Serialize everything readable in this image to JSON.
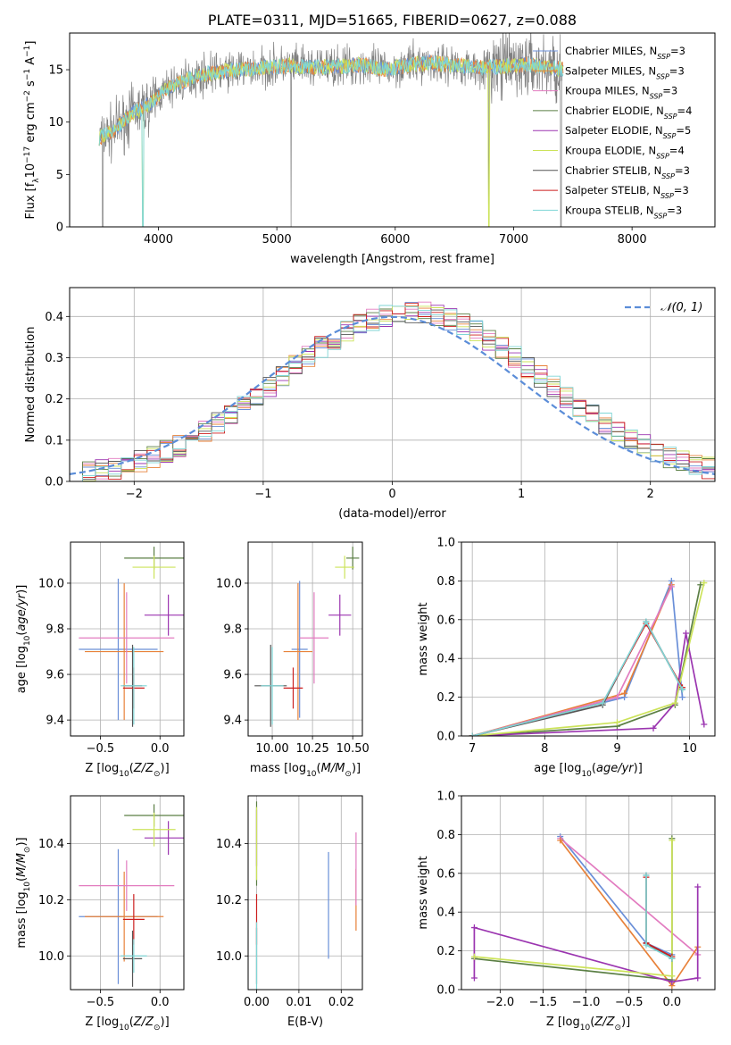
{
  "colors": {
    "chabrier_miles": "#6a8fd8",
    "salpeter_miles": "#e8823a",
    "kroupa_miles": "#e27cc0",
    "chabrier_elodie": "#5b7f45",
    "salpeter_elodie": "#9b35b0",
    "kroupa_elodie": "#cce35a",
    "chabrier_stelib": "#555555",
    "salpeter_stelib": "#cc1f1f",
    "kroupa_stelib": "#7fd6d6",
    "normal": "#5b8dd8"
  },
  "chart_data": [
    {
      "id": "spectrum",
      "type": "line",
      "title": "PLATE=0311, MJD=51665, FIBERID=0627, z=0.088",
      "xlabel": "wavelength [Angstrom, rest frame]",
      "ylabel": "Flux [f_λ 10^-17 erg cm^-2 s^-1 A^-1]",
      "xlim": [
        3250,
        8700
      ],
      "ylim": [
        0,
        18.5
      ],
      "xticks": [
        "4000",
        "5000",
        "6000",
        "7000",
        "8000"
      ],
      "yticks": [
        "0",
        "5",
        "10",
        "15"
      ],
      "continuum": {
        "x": [
          3500,
          3600,
          3700,
          3800,
          3900,
          4000,
          4100,
          4200,
          4300,
          4400,
          4500,
          4700,
          4900,
          5100,
          5300,
          5500,
          5700,
          5900,
          6100,
          6300,
          6500,
          6700,
          6900,
          7100,
          7300,
          7500,
          7700,
          7900,
          8100,
          8300,
          8500
        ],
        "y": [
          8.5,
          9.0,
          10.0,
          11.0,
          11.5,
          12.5,
          13.3,
          13.8,
          14.3,
          14.6,
          14.8,
          15.0,
          15.2,
          15.4,
          15.2,
          15.3,
          15.5,
          15.0,
          15.4,
          15.7,
          15.4,
          15.2,
          15.3,
          15.5,
          15.2,
          14.9,
          14.8,
          14.6,
          14.4,
          14.3,
          14.2
        ]
      },
      "legend": [
        {
          "name": "Chabrier MILES",
          "nssp": "3",
          "color": "chabrier_miles"
        },
        {
          "name": "Salpeter MILES",
          "nssp": "3",
          "color": "salpeter_miles"
        },
        {
          "name": "Kroupa MILES",
          "nssp": "3",
          "color": "kroupa_miles"
        },
        {
          "name": "Chabrier ELODIE",
          "nssp": "4",
          "color": "chabrier_elodie"
        },
        {
          "name": "Salpeter ELODIE",
          "nssp": "5",
          "color": "salpeter_elodie"
        },
        {
          "name": "Kroupa ELODIE",
          "nssp": "4",
          "color": "kroupa_elodie"
        },
        {
          "name": "Chabrier STELIB",
          "nssp": "3",
          "color": "chabrier_stelib"
        },
        {
          "name": "Salpeter STELIB",
          "nssp": "3",
          "color": "salpeter_stelib"
        },
        {
          "name": "Kroupa STELIB",
          "nssp": "3",
          "color": "kroupa_stelib"
        }
      ],
      "legend_placement": "right"
    },
    {
      "id": "residuals",
      "type": "step",
      "xlabel": "(data-model)/error",
      "ylabel": "Normed distribution",
      "xlim": [
        -2.5,
        2.5
      ],
      "ylim": [
        0,
        0.47
      ],
      "xticks": [
        "−2",
        "−1",
        "0",
        "1",
        "2"
      ],
      "yticks": [
        "0.0",
        "0.1",
        "0.2",
        "0.3",
        "0.4"
      ],
      "grid": true,
      "bin_width": 0.1,
      "normal_curve": {
        "label": "𝒩(0, 1)",
        "mean": 0,
        "sigma": 1
      },
      "legend_placement": "top-right"
    },
    {
      "id": "age_vs_Z",
      "type": "errorbar",
      "xlabel": "Z [log10(Z/Z⊙)]",
      "ylabel": "age [log10(age/yr)]",
      "xlim": [
        -0.75,
        0.2
      ],
      "ylim": [
        9.33,
        10.18
      ],
      "xticks": [
        "−0.5",
        "0.0"
      ],
      "yticks": [
        "9.4",
        "9.6",
        "9.8",
        "10.0"
      ],
      "grid": true,
      "points": [
        {
          "c": "chabrier_miles",
          "x": -0.35,
          "xerr": 0.33,
          "y": 9.71,
          "yerr": 0.31
        },
        {
          "c": "salpeter_miles",
          "x": -0.3,
          "xerr": 0.33,
          "y": 9.7,
          "yerr": 0.3
        },
        {
          "c": "kroupa_miles",
          "x": -0.28,
          "xerr": 0.4,
          "y": 9.76,
          "yerr": 0.2
        },
        {
          "c": "chabrier_elodie",
          "x": -0.05,
          "xerr": 0.25,
          "y": 10.11,
          "yerr": 0.05
        },
        {
          "c": "salpeter_elodie",
          "x": 0.07,
          "xerr": 0.2,
          "y": 9.86,
          "yerr": 0.09
        },
        {
          "c": "kroupa_elodie",
          "x": -0.05,
          "xerr": 0.18,
          "y": 10.07,
          "yerr": 0.05
        },
        {
          "c": "chabrier_stelib",
          "x": -0.23,
          "xerr": 0.08,
          "y": 9.55,
          "yerr": 0.18
        },
        {
          "c": "salpeter_stelib",
          "x": -0.22,
          "xerr": 0.09,
          "y": 9.54,
          "yerr": 0.09
        },
        {
          "c": "kroupa_stelib",
          "x": -0.22,
          "xerr": 0.11,
          "y": 9.55,
          "yerr": 0.17
        }
      ]
    },
    {
      "id": "age_vs_mass",
      "type": "errorbar",
      "xlabel": "mass [log10(M/M⊙)]",
      "ylabel": "",
      "xlim": [
        9.85,
        10.56
      ],
      "ylim": [
        9.33,
        10.18
      ],
      "xticks": [
        "10.00",
        "10.25",
        "10.50"
      ],
      "yticks": [
        "9.4",
        "9.6",
        "9.8",
        "10.0"
      ],
      "grid": true,
      "points": [
        {
          "c": "chabrier_miles",
          "x": 10.17,
          "xerr": 0.05,
          "y": 9.71,
          "yerr": 0.3
        },
        {
          "c": "salpeter_miles",
          "x": 10.16,
          "xerr": 0.09,
          "y": 9.7,
          "yerr": 0.3
        },
        {
          "c": "kroupa_miles",
          "x": 10.26,
          "xerr": 0.09,
          "y": 9.76,
          "yerr": 0.2
        },
        {
          "c": "chabrier_elodie",
          "x": 10.5,
          "xerr": 0.04,
          "y": 10.11,
          "yerr": 0.05
        },
        {
          "c": "salpeter_elodie",
          "x": 10.42,
          "xerr": 0.07,
          "y": 9.86,
          "yerr": 0.09
        },
        {
          "c": "kroupa_elodie",
          "x": 10.45,
          "xerr": 0.06,
          "y": 10.07,
          "yerr": 0.05
        },
        {
          "c": "chabrier_stelib",
          "x": 9.99,
          "xerr": 0.1,
          "y": 9.55,
          "yerr": 0.18
        },
        {
          "c": "salpeter_stelib",
          "x": 10.13,
          "xerr": 0.06,
          "y": 9.54,
          "yerr": 0.09
        },
        {
          "c": "kroupa_stelib",
          "x": 10.0,
          "xerr": 0.07,
          "y": 9.55,
          "yerr": 0.17
        }
      ]
    },
    {
      "id": "weight_vs_age",
      "type": "line",
      "xlabel": "age [log10(age/yr)]",
      "ylabel": "mass weight",
      "xlim": [
        6.85,
        10.35
      ],
      "ylim": [
        0,
        1.0
      ],
      "xticks": [
        "7",
        "8",
        "9",
        "10"
      ],
      "yticks": [
        "0.0",
        "0.2",
        "0.4",
        "0.6",
        "0.8",
        "1.0"
      ],
      "grid": true,
      "series": [
        {
          "c": "chabrier_miles",
          "x": [
            7.0,
            9.1,
            9.75,
            9.9
          ],
          "y": [
            0.0,
            0.2,
            0.8,
            0.2
          ]
        },
        {
          "c": "salpeter_miles",
          "x": [
            7.0,
            9.1,
            9.75
          ],
          "y": [
            0.0,
            0.22,
            0.78
          ]
        },
        {
          "c": "kroupa_miles",
          "x": [
            7.0,
            9.0,
            9.75
          ],
          "y": [
            0.0,
            0.2,
            0.77
          ]
        },
        {
          "c": "chabrier_elodie",
          "x": [
            7.0,
            9.0,
            9.8,
            10.15
          ],
          "y": [
            0.0,
            0.05,
            0.16,
            0.78
          ]
        },
        {
          "c": "salpeter_elodie",
          "x": [
            7.0,
            9.5,
            9.8,
            9.95,
            10.2
          ],
          "y": [
            0.0,
            0.04,
            0.17,
            0.53,
            0.06
          ]
        },
        {
          "c": "kroupa_elodie",
          "x": [
            7.0,
            9.0,
            9.8,
            10.2
          ],
          "y": [
            0.0,
            0.07,
            0.17,
            0.79
          ]
        },
        {
          "c": "chabrier_stelib",
          "x": [
            7.0,
            8.8,
            9.4,
            9.9
          ],
          "y": [
            0.0,
            0.16,
            0.59,
            0.24
          ]
        },
        {
          "c": "salpeter_stelib",
          "x": [
            7.0,
            8.8,
            9.4,
            9.9
          ],
          "y": [
            0.0,
            0.17,
            0.58,
            0.25
          ]
        },
        {
          "c": "kroupa_stelib",
          "x": [
            7.0,
            8.8,
            9.4,
            9.9
          ],
          "y": [
            0.0,
            0.17,
            0.59,
            0.24
          ]
        }
      ]
    },
    {
      "id": "mass_vs_Z",
      "type": "errorbar",
      "xlabel": "Z [log10(Z/Z⊙)]",
      "ylabel": "mass [log10(M/M⊙)]",
      "xlim": [
        -0.75,
        0.2
      ],
      "ylim": [
        9.88,
        10.57
      ],
      "xticks": [
        "−0.5",
        "0.0"
      ],
      "yticks": [
        "10.0",
        "10.2",
        "10.4"
      ],
      "grid": true,
      "points": [
        {
          "c": "chabrier_miles",
          "x": -0.35,
          "xerr": 0.33,
          "y": 10.14,
          "yerr": 0.24
        },
        {
          "c": "salpeter_miles",
          "x": -0.3,
          "xerr": 0.33,
          "y": 10.14,
          "yerr": 0.16
        },
        {
          "c": "kroupa_miles",
          "x": -0.28,
          "xerr": 0.4,
          "y": 10.25,
          "yerr": 0.09
        },
        {
          "c": "chabrier_elodie",
          "x": -0.05,
          "xerr": 0.25,
          "y": 10.5,
          "yerr": 0.04
        },
        {
          "c": "salpeter_elodie",
          "x": 0.07,
          "xerr": 0.2,
          "y": 10.42,
          "yerr": 0.06
        },
        {
          "c": "kroupa_elodie",
          "x": -0.05,
          "xerr": 0.18,
          "y": 10.45,
          "yerr": 0.06
        },
        {
          "c": "chabrier_stelib",
          "x": -0.23,
          "xerr": 0.08,
          "y": 9.99,
          "yerr": 0.1
        },
        {
          "c": "salpeter_stelib",
          "x": -0.22,
          "xerr": 0.09,
          "y": 10.13,
          "yerr": 0.09
        },
        {
          "c": "kroupa_stelib",
          "x": -0.22,
          "xerr": 0.11,
          "y": 10.0,
          "yerr": 0.06
        }
      ]
    },
    {
      "id": "mass_vs_ebv",
      "type": "errorbar",
      "xlabel": "E(B-V)",
      "ylabel": "",
      "xlim": [
        -0.002,
        0.025
      ],
      "ylim": [
        9.88,
        10.57
      ],
      "xticks": [
        "0.00",
        "0.01",
        "0.02"
      ],
      "yticks": [
        "10.0",
        "10.2",
        "10.4"
      ],
      "grid": true,
      "points": [
        {
          "c": "chabrier_miles",
          "x": 0.017,
          "xerr": 0.0,
          "y": 10.18,
          "yerr": 0.19
        },
        {
          "c": "salpeter_miles",
          "x": 0.0235,
          "xerr": 0.0,
          "y": 10.2,
          "yerr": 0.11
        },
        {
          "c": "kroupa_miles",
          "x": 0.0235,
          "xerr": 0.0,
          "y": 10.31,
          "yerr": 0.13
        },
        {
          "c": "chabrier_elodie",
          "x": 0.0,
          "xerr": 0.0,
          "y": 10.4,
          "yerr": 0.15
        },
        {
          "c": "salpeter_elodie",
          "x": 0.0,
          "xerr": 0.0,
          "y": 10.42,
          "yerr": 0.1
        },
        {
          "c": "kroupa_elodie",
          "x": 0.0,
          "xerr": 0.0,
          "y": 10.4,
          "yerr": 0.13
        },
        {
          "c": "chabrier_stelib",
          "x": 0.0,
          "xerr": 0.0,
          "y": 10.0,
          "yerr": 0.1
        },
        {
          "c": "salpeter_stelib",
          "x": 0.0,
          "xerr": 0.0,
          "y": 10.13,
          "yerr": 0.09
        },
        {
          "c": "kroupa_stelib",
          "x": 0.0,
          "xerr": 0.0,
          "y": 10.0,
          "yerr": 0.12
        }
      ]
    },
    {
      "id": "weight_vs_Z",
      "type": "line",
      "xlabel": "Z [log10(Z/Z⊙)]",
      "ylabel": "mass weight",
      "xlim": [
        -2.45,
        0.5
      ],
      "ylim": [
        0,
        1.0
      ],
      "xticks": [
        "−2.0",
        "−1.5",
        "−1.0",
        "−0.5",
        "0.0"
      ],
      "yticks": [
        "0.0",
        "0.2",
        "0.4",
        "0.6",
        "0.8",
        "1.0"
      ],
      "grid": true,
      "series": [
        {
          "c": "chabrier_miles",
          "x": [
            -1.3,
            -0.3,
            0.0
          ],
          "y": [
            0.79,
            0.24,
            0.18
          ]
        },
        {
          "c": "kroupa_miles",
          "x": [
            -1.3,
            0.3
          ],
          "y": [
            0.78,
            0.18
          ]
        },
        {
          "c": "salpeter_miles",
          "x": [
            -1.3,
            0.0,
            0.3
          ],
          "y": [
            0.77,
            0.02,
            0.22
          ]
        },
        {
          "c": "chabrier_elodie",
          "x": [
            -2.3,
            0.0,
            0.0
          ],
          "y": [
            0.16,
            0.05,
            0.78
          ]
        },
        {
          "c": "salpeter_elodie",
          "x": [
            -2.3,
            -2.3,
            0.0,
            0.3,
            0.3
          ],
          "y": [
            0.06,
            0.32,
            0.04,
            0.06,
            0.53
          ]
        },
        {
          "c": "kroupa_elodie",
          "x": [
            -2.3,
            0.0,
            0.0
          ],
          "y": [
            0.17,
            0.07,
            0.77
          ]
        },
        {
          "c": "chabrier_stelib",
          "x": [
            -0.3,
            -0.3,
            0.0
          ],
          "y": [
            0.59,
            0.24,
            0.16
          ]
        },
        {
          "c": "salpeter_stelib",
          "x": [
            -0.3,
            -0.3,
            0.0
          ],
          "y": [
            0.58,
            0.24,
            0.17
          ]
        },
        {
          "c": "kroupa_stelib",
          "x": [
            -0.3,
            -0.3,
            0.0
          ],
          "y": [
            0.59,
            0.23,
            0.16
          ]
        }
      ]
    }
  ]
}
